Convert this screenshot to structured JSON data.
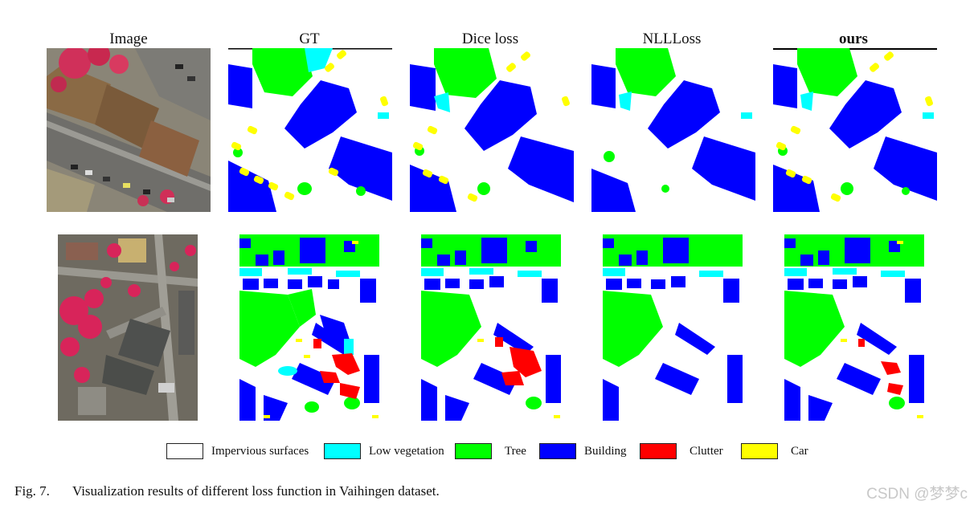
{
  "columns": [
    "Image",
    "GT",
    "Dice loss",
    "NLLLoss",
    "ours"
  ],
  "legend": [
    {
      "label": "Impervious surfaces",
      "color": "#ffffff"
    },
    {
      "label": "Low vegetation",
      "color": "#00ffff"
    },
    {
      "label": "Tree",
      "color": "#00ff00"
    },
    {
      "label": "Building",
      "color": "#0000ff"
    },
    {
      "label": "Clutter",
      "color": "#ff0000"
    },
    {
      "label": "Car",
      "color": "#ffff00"
    }
  ],
  "caption": {
    "figure_number": "Fig. 7.",
    "text": "Visualization results of different loss function in Vaihingen dataset."
  },
  "watermark": "CSDN @梦梦c"
}
